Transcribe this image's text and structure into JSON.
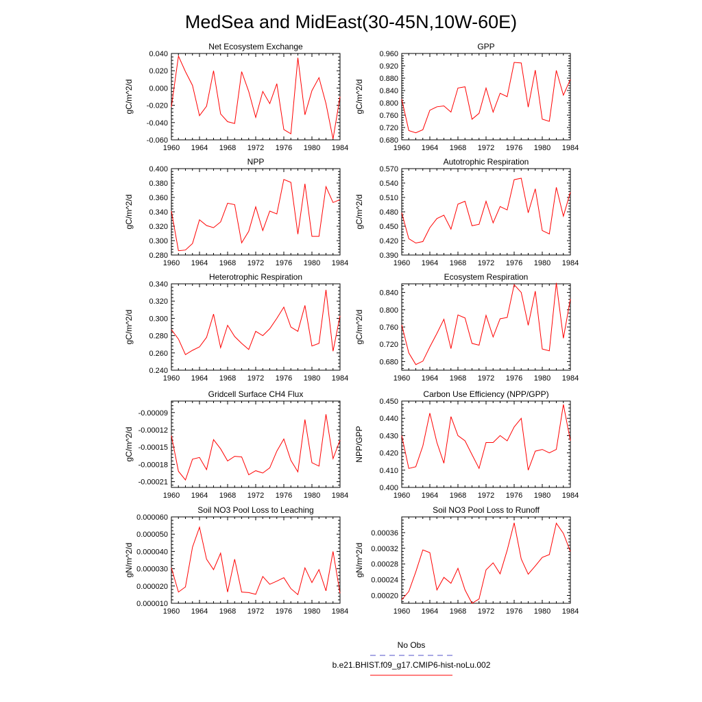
{
  "page": {
    "title": "MedSea and MidEast(30-45N,10W-60E)"
  },
  "legend": [
    {
      "label": "No Obs",
      "color": "#5050c8",
      "style": "dashed"
    },
    {
      "label": "b.e21.BHIST.f09_g17.CMIP6-hist-noLu.002",
      "color": "#ff0000",
      "style": "solid"
    }
  ],
  "chart_data": [
    {
      "type": "line",
      "title": "Net Ecosystem Exchange",
      "ylabel": "gC/m^2/d",
      "xlim": [
        1960,
        1984
      ],
      "ylim": [
        -0.06,
        0.04
      ],
      "xticks": [
        "1960",
        "1964",
        "1968",
        "1972",
        "1976",
        "1980",
        "1984"
      ],
      "yticks": [
        "-0.060",
        "-0.040",
        "-0.020",
        "0.000",
        "0.020",
        "0.040"
      ],
      "x": [
        1960,
        1961,
        1962,
        1963,
        1964,
        1965,
        1966,
        1967,
        1968,
        1969,
        1970,
        1971,
        1972,
        1973,
        1974,
        1975,
        1976,
        1977,
        1978,
        1979,
        1980,
        1981,
        1982,
        1983,
        1984
      ],
      "series": [
        {
          "name": "b.e21.BHIST.f09_g17.CMIP6-hist-noLu.002",
          "color": "#ff0000",
          "values": [
            -0.022,
            0.037,
            0.019,
            0.003,
            -0.032,
            -0.021,
            0.02,
            -0.03,
            -0.039,
            -0.041,
            0.019,
            -0.004,
            -0.034,
            -0.004,
            -0.018,
            0.005,
            -0.048,
            -0.053,
            0.035,
            -0.031,
            -0.003,
            0.012,
            -0.018,
            -0.059,
            -0.01
          ]
        }
      ]
    },
    {
      "type": "line",
      "title": "GPP",
      "ylabel": "gC/m^2/d",
      "xlim": [
        1960,
        1984
      ],
      "ylim": [
        0.68,
        0.96
      ],
      "xticks": [
        "1960",
        "1964",
        "1968",
        "1972",
        "1976",
        "1980",
        "1984"
      ],
      "yticks": [
        "0.680",
        "0.720",
        "0.760",
        "0.800",
        "0.840",
        "0.880",
        "0.920",
        "0.960"
      ],
      "x": [
        1960,
        1961,
        1962,
        1963,
        1964,
        1965,
        1966,
        1967,
        1968,
        1969,
        1970,
        1971,
        1972,
        1973,
        1974,
        1975,
        1976,
        1977,
        1978,
        1979,
        1980,
        1981,
        1982,
        1983,
        1984
      ],
      "series": [
        {
          "name": "b.e21.BHIST.f09_g17.CMIP6-hist-noLu.002",
          "color": "#ff0000",
          "values": [
            0.812,
            0.71,
            0.703,
            0.713,
            0.776,
            0.787,
            0.79,
            0.77,
            0.848,
            0.852,
            0.747,
            0.766,
            0.848,
            0.77,
            0.831,
            0.82,
            0.931,
            0.929,
            0.786,
            0.906,
            0.747,
            0.74,
            0.905,
            0.825,
            0.876
          ]
        }
      ]
    },
    {
      "type": "line",
      "title": "NPP",
      "ylabel": "gC/m^2/d",
      "xlim": [
        1960,
        1984
      ],
      "ylim": [
        0.28,
        0.4
      ],
      "xticks": [
        "1960",
        "1964",
        "1968",
        "1972",
        "1976",
        "1980",
        "1984"
      ],
      "yticks": [
        "0.280",
        "0.300",
        "0.320",
        "0.340",
        "0.360",
        "0.380",
        "0.400"
      ],
      "x": [
        1960,
        1961,
        1962,
        1963,
        1964,
        1965,
        1966,
        1967,
        1968,
        1969,
        1970,
        1971,
        1972,
        1973,
        1974,
        1975,
        1976,
        1977,
        1978,
        1979,
        1980,
        1981,
        1982,
        1983,
        1984
      ],
      "series": [
        {
          "name": "b.e21.BHIST.f09_g17.CMIP6-hist-noLu.002",
          "color": "#ff0000",
          "values": [
            0.341,
            0.286,
            0.287,
            0.296,
            0.329,
            0.321,
            0.318,
            0.326,
            0.352,
            0.35,
            0.297,
            0.313,
            0.347,
            0.314,
            0.341,
            0.337,
            0.385,
            0.381,
            0.309,
            0.379,
            0.306,
            0.306,
            0.375,
            0.353,
            0.357
          ]
        }
      ]
    },
    {
      "type": "line",
      "title": "Autotrophic Respiration",
      "ylabel": "gC/m^2/d",
      "xlim": [
        1960,
        1984
      ],
      "ylim": [
        0.39,
        0.57
      ],
      "xticks": [
        "1960",
        "1964",
        "1968",
        "1972",
        "1976",
        "1980",
        "1984"
      ],
      "yticks": [
        "0.390",
        "0.420",
        "0.450",
        "0.480",
        "0.510",
        "0.540",
        "0.570"
      ],
      "x": [
        1960,
        1961,
        1962,
        1963,
        1964,
        1965,
        1966,
        1967,
        1968,
        1969,
        1970,
        1971,
        1972,
        1973,
        1974,
        1975,
        1976,
        1977,
        1978,
        1979,
        1980,
        1981,
        1982,
        1983,
        1984
      ],
      "series": [
        {
          "name": "b.e21.BHIST.f09_g17.CMIP6-hist-noLu.002",
          "color": "#ff0000",
          "values": [
            0.478,
            0.424,
            0.415,
            0.418,
            0.447,
            0.466,
            0.473,
            0.444,
            0.496,
            0.502,
            0.451,
            0.454,
            0.502,
            0.457,
            0.491,
            0.484,
            0.547,
            0.55,
            0.478,
            0.528,
            0.441,
            0.434,
            0.531,
            0.471,
            0.521
          ]
        }
      ]
    },
    {
      "type": "line",
      "title": "Heterotrophic Respiration",
      "ylabel": "gC/m^2/d",
      "xlim": [
        1960,
        1984
      ],
      "ylim": [
        0.24,
        0.34
      ],
      "xticks": [
        "1960",
        "1964",
        "1968",
        "1972",
        "1976",
        "1980",
        "1984"
      ],
      "yticks": [
        "0.240",
        "0.260",
        "0.280",
        "0.300",
        "0.320",
        "0.340"
      ],
      "x": [
        1960,
        1961,
        1962,
        1963,
        1964,
        1965,
        1966,
        1967,
        1968,
        1969,
        1970,
        1971,
        1972,
        1973,
        1974,
        1975,
        1976,
        1977,
        1978,
        1979,
        1980,
        1981,
        1982,
        1983,
        1984
      ],
      "series": [
        {
          "name": "b.e21.BHIST.f09_g17.CMIP6-hist-noLu.002",
          "color": "#ff0000",
          "values": [
            0.287,
            0.276,
            0.258,
            0.263,
            0.267,
            0.278,
            0.305,
            0.266,
            0.292,
            0.279,
            0.271,
            0.264,
            0.285,
            0.28,
            0.288,
            0.3,
            0.313,
            0.29,
            0.285,
            0.315,
            0.268,
            0.271,
            0.333,
            0.262,
            0.303
          ]
        }
      ]
    },
    {
      "type": "line",
      "title": "Ecosystem Respiration",
      "ylabel": "gC/m^2/d",
      "xlim": [
        1960,
        1984
      ],
      "ylim": [
        0.66,
        0.86
      ],
      "xticks": [
        "1960",
        "1964",
        "1968",
        "1972",
        "1976",
        "1980",
        "1984"
      ],
      "yticks": [
        "0.680",
        "0.720",
        "0.760",
        "0.800",
        "0.840"
      ],
      "x": [
        1960,
        1961,
        1962,
        1963,
        1964,
        1965,
        1966,
        1967,
        1968,
        1969,
        1970,
        1971,
        1972,
        1973,
        1974,
        1975,
        1976,
        1977,
        1978,
        1979,
        1980,
        1981,
        1982,
        1983,
        1984
      ],
      "series": [
        {
          "name": "b.e21.BHIST.f09_g17.CMIP6-hist-noLu.002",
          "color": "#ff0000",
          "values": [
            0.765,
            0.7,
            0.673,
            0.681,
            0.714,
            0.745,
            0.778,
            0.71,
            0.788,
            0.781,
            0.722,
            0.718,
            0.787,
            0.737,
            0.779,
            0.782,
            0.858,
            0.84,
            0.764,
            0.843,
            0.709,
            0.705,
            0.862,
            0.734,
            0.825
          ]
        }
      ]
    },
    {
      "type": "line",
      "title": "Gridcell Surface CH4 Flux",
      "ylabel": "gC/m^2/d",
      "xlim": [
        1960,
        1984
      ],
      "ylim": [
        -0.00022,
        -7e-05
      ],
      "xticks": [
        "1960",
        "1964",
        "1968",
        "1972",
        "1976",
        "1980",
        "1984"
      ],
      "yticks": [
        "-0.00021",
        "-0.00018",
        "-0.00015",
        "-0.00012",
        "-0.00009"
      ],
      "x": [
        1960,
        1961,
        1962,
        1963,
        1964,
        1965,
        1966,
        1967,
        1968,
        1969,
        1970,
        1971,
        1972,
        1973,
        1974,
        1975,
        1976,
        1977,
        1978,
        1979,
        1980,
        1981,
        1982,
        1983,
        1984
      ],
      "series": [
        {
          "name": "b.e21.BHIST.f09_g17.CMIP6-hist-noLu.002",
          "color": "#ff0000",
          "values": [
            -0.00013,
            -0.000192,
            -0.000207,
            -0.000171,
            -0.000168,
            -0.000189,
            -0.000137,
            -0.000153,
            -0.000174,
            -0.000166,
            -0.000167,
            -0.000198,
            -0.000191,
            -0.000195,
            -0.000186,
            -0.000157,
            -0.000136,
            -0.000173,
            -0.000193,
            -0.000102,
            -0.000177,
            -0.000183,
            -9.3e-05,
            -0.00017,
            -0.000138
          ]
        }
      ]
    },
    {
      "type": "line",
      "title": "Carbon Use Efficiency (NPP/GPP)",
      "ylabel": "NPP/GPP",
      "xlim": [
        1960,
        1984
      ],
      "ylim": [
        0.4,
        0.45
      ],
      "xticks": [
        "1960",
        "1964",
        "1968",
        "1972",
        "1976",
        "1980",
        "1984"
      ],
      "yticks": [
        "0.400",
        "0.410",
        "0.420",
        "0.430",
        "0.440",
        "0.450"
      ],
      "x": [
        1960,
        1961,
        1962,
        1963,
        1964,
        1965,
        1966,
        1967,
        1968,
        1969,
        1970,
        1971,
        1972,
        1973,
        1974,
        1975,
        1976,
        1977,
        1978,
        1979,
        1980,
        1981,
        1982,
        1983,
        1984
      ],
      "series": [
        {
          "name": "b.e21.BHIST.f09_g17.CMIP6-hist-noLu.002",
          "color": "#ff0000",
          "values": [
            0.43,
            0.411,
            0.412,
            0.424,
            0.443,
            0.426,
            0.414,
            0.441,
            0.43,
            0.427,
            0.419,
            0.411,
            0.426,
            0.426,
            0.43,
            0.427,
            0.435,
            0.44,
            0.41,
            0.421,
            0.422,
            0.42,
            0.422,
            0.448,
            0.427
          ]
        }
      ]
    },
    {
      "type": "line",
      "title": "Soil NO3 Pool Loss to Leaching",
      "ylabel": "gN/m^2/d",
      "xlim": [
        1960,
        1984
      ],
      "ylim": [
        1e-05,
        6e-05
      ],
      "xticks": [
        "1960",
        "1964",
        "1968",
        "1972",
        "1976",
        "1980",
        "1984"
      ],
      "yticks": [
        "0.000010",
        "0.000020",
        "0.000030",
        "0.000040",
        "0.000050",
        "0.000060"
      ],
      "x": [
        1960,
        1961,
        1962,
        1963,
        1964,
        1965,
        1966,
        1967,
        1968,
        1969,
        1970,
        1971,
        1972,
        1973,
        1974,
        1975,
        1976,
        1977,
        1978,
        1979,
        1980,
        1981,
        1982,
        1983,
        1984
      ],
      "series": [
        {
          "name": "b.e21.BHIST.f09_g17.CMIP6-hist-noLu.002",
          "color": "#ff0000",
          "values": [
            3.05e-05,
            1.65e-05,
            1.95e-05,
            4.25e-05,
            5.4e-05,
            3.55e-05,
            2.95e-05,
            3.9e-05,
            1.65e-05,
            3.55e-05,
            1.65e-05,
            1.62e-05,
            1.52e-05,
            2.55e-05,
            2.1e-05,
            2.28e-05,
            2.48e-05,
            1.85e-05,
            1.5e-05,
            3.05e-05,
            2.2e-05,
            2.95e-05,
            1.72e-05,
            4e-05,
            1.58e-05
          ]
        }
      ]
    },
    {
      "type": "line",
      "title": "Soil NO3 Pool Loss to Runoff",
      "ylabel": "gN/m^2/d",
      "xlim": [
        1960,
        1984
      ],
      "ylim": [
        0.00018,
        0.0004
      ],
      "xticks": [
        "1960",
        "1964",
        "1968",
        "1972",
        "1976",
        "1980",
        "1984"
      ],
      "yticks": [
        "0.00020",
        "0.00024",
        "0.00028",
        "0.00032",
        "0.00036"
      ],
      "x": [
        1960,
        1961,
        1962,
        1963,
        1964,
        1965,
        1966,
        1967,
        1968,
        1969,
        1970,
        1971,
        1972,
        1973,
        1974,
        1975,
        1976,
        1977,
        1978,
        1979,
        1980,
        1981,
        1982,
        1983,
        1984
      ],
      "series": [
        {
          "name": "b.e21.BHIST.f09_g17.CMIP6-hist-noLu.002",
          "color": "#ff0000",
          "values": [
            0.000189,
            0.00021,
            0.00026,
            0.000316,
            0.000309,
            0.000214,
            0.000246,
            0.000231,
            0.000269,
            0.000214,
            0.00018,
            0.000191,
            0.000265,
            0.000283,
            0.000255,
            0.000315,
            0.000385,
            0.000293,
            0.000254,
            0.000275,
            0.000297,
            0.000304,
            0.000384,
            0.000358,
            0.000312
          ]
        }
      ]
    }
  ]
}
